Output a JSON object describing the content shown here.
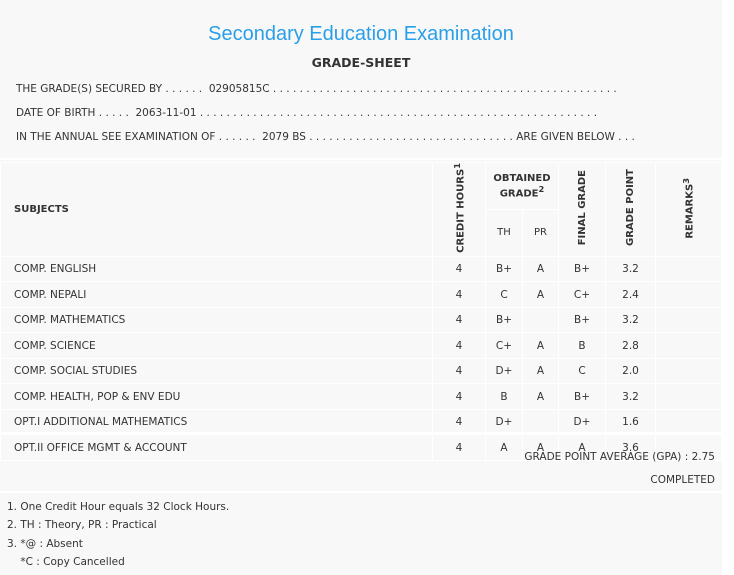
{
  "header": {
    "title": "Secondary Education Examination",
    "subtitle": "GRADE-SHEET"
  },
  "info": {
    "secured_by": "THE GRADE(S) SECURED BY . . . . . .  02905815C . . . . . . . . . . . . . . . . . . . . . . . . . . . . . . . . . . . . . . . . . . . . . . . . . . . .",
    "dob": "DATE OF BIRTH . . . . .  2063-11-01 . . . . . . . . . . . . . . . . . . . . . . . . . . . . . . . . . . . . . . . . . . . . . . . . . . . . . . . . . . . .",
    "exam": "IN THE ANNUAL SEE EXAMINATION OF . . . . . .  2079 BS . . . . . . . . . . . . . . . . . . . . . . . . . . . . . . . ARE GIVEN BELOW . . ."
  },
  "table": {
    "headers": {
      "subjects": "SUBJECTS",
      "credit_hours": "CREDIT HOURS",
      "credit_sup": "1",
      "obtained": "OBTAINED GRADE",
      "obtained_sup": "2",
      "th": "TH",
      "pr": "PR",
      "final": "FINAL GRADE",
      "point": "GRADE POINT",
      "remarks": "REMARKS",
      "remarks_sup": "3"
    },
    "rows": [
      {
        "subject": "COMP. ENGLISH",
        "credit": "4",
        "th": "B+",
        "pr": "A",
        "final": "B+",
        "point": "3.2"
      },
      {
        "subject": "COMP. NEPALI",
        "credit": "4",
        "th": "C",
        "pr": "A",
        "final": "C+",
        "point": "2.4"
      },
      {
        "subject": "COMP. MATHEMATICS",
        "credit": "4",
        "th": "B+",
        "pr": "",
        "final": "B+",
        "point": "3.2"
      },
      {
        "subject": "COMP. SCIENCE",
        "credit": "4",
        "th": "C+",
        "pr": "A",
        "final": "B",
        "point": "2.8"
      },
      {
        "subject": "COMP. SOCIAL STUDIES",
        "credit": "4",
        "th": "D+",
        "pr": "A",
        "final": "C",
        "point": "2.0"
      },
      {
        "subject": "COMP. HEALTH, POP & ENV EDU",
        "credit": "4",
        "th": "B",
        "pr": "A",
        "final": "B+",
        "point": "3.2"
      },
      {
        "subject": "OPT.I ADDITIONAL MATHEMATICS",
        "credit": "4",
        "th": "D+",
        "pr": "",
        "final": "D+",
        "point": "1.6"
      },
      {
        "subject": "OPT.II OFFICE MGMT & ACCOUNT",
        "credit": "4",
        "th": "A",
        "pr": "A",
        "final": "A",
        "point": "3.6"
      }
    ]
  },
  "summary": {
    "gpa": "GRADE POINT AVERAGE (GPA) : 2.75",
    "status": "COMPLETED"
  },
  "notes": [
    "1. One Credit Hour equals 32 Clock Hours.",
    "2. TH : Theory, PR : Practical",
    "3. *@ : Absent",
    "    *C : Copy Cancelled"
  ]
}
